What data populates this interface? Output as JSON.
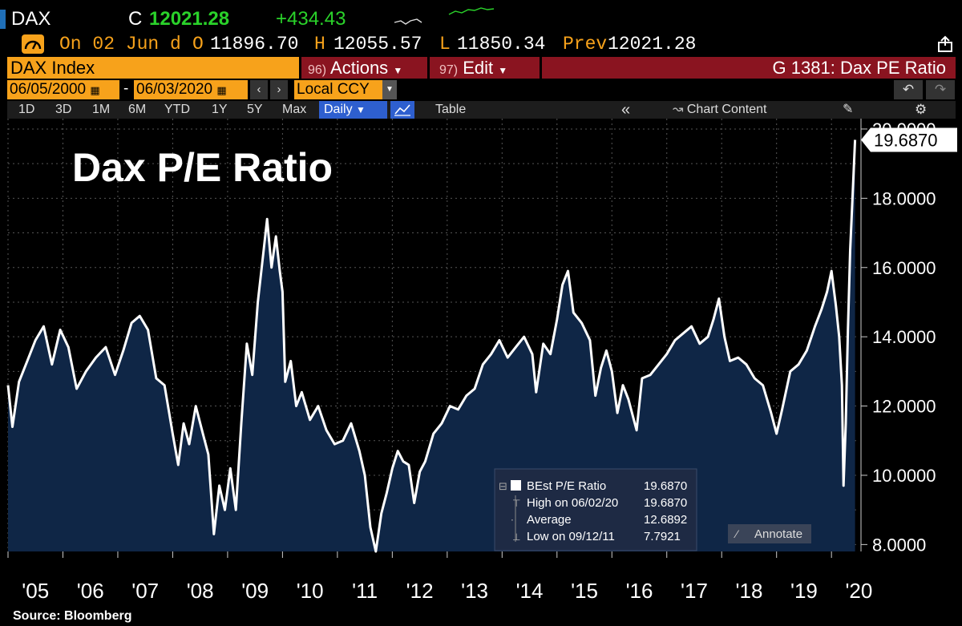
{
  "header": {
    "ticker": "DAX",
    "price_flag": "C",
    "price": "12021.28",
    "change": "+434.43",
    "date_label": "On 02 Jun d",
    "open_label": "O",
    "open": "11896.70",
    "high_label": "H",
    "high": "12055.57",
    "low_label": "L",
    "low": "11850.34",
    "prev_label": "Prev",
    "prev": "12021.28"
  },
  "toolbar": {
    "security": "DAX Index",
    "actions_num": "96)",
    "actions_label": "Actions",
    "edit_num": "97)",
    "edit_label": "Edit",
    "function_title": "G 1381: Dax PE Ratio",
    "start_date": "06/05/2000",
    "end_date": "06/03/2020",
    "currency": "Local CCY",
    "ranges": [
      "1D",
      "3D",
      "1M",
      "6M",
      "YTD",
      "1Y",
      "5Y",
      "Max"
    ],
    "period": "Daily",
    "table_label": "Table",
    "chart_content_label": "Chart Content",
    "colors": {
      "orange": "#f7a21b",
      "darkred": "#8a1420",
      "blue": "#2e5fcf"
    }
  },
  "chart_data": {
    "type": "area",
    "title": "Dax P/E Ratio",
    "x_tick_labels": [
      "'05",
      "'06",
      "'07",
      "'08",
      "'09",
      "'10",
      "'11",
      "'12",
      "'13",
      "'14",
      "'15",
      "'16",
      "'17",
      "'18",
      "'19",
      "'20"
    ],
    "y_tick_labels": [
      "8.0000",
      "10.0000",
      "12.0000",
      "14.0000",
      "16.0000",
      "18.0000",
      "20.0000"
    ],
    "ylim": [
      7.8,
      20.3
    ],
    "xlim": [
      2005.0,
      2020.45
    ],
    "grid": true,
    "series": [
      {
        "name": "BEst P/E Ratio",
        "color": "#ffffff",
        "fill": "#0f2646",
        "points": [
          [
            2005.0,
            12.6
          ],
          [
            2005.08,
            11.4
          ],
          [
            2005.2,
            12.7
          ],
          [
            2005.35,
            13.3
          ],
          [
            2005.5,
            13.9
          ],
          [
            2005.65,
            14.3
          ],
          [
            2005.8,
            13.2
          ],
          [
            2005.95,
            14.2
          ],
          [
            2006.1,
            13.7
          ],
          [
            2006.25,
            12.5
          ],
          [
            2006.42,
            13.0
          ],
          [
            2006.6,
            13.4
          ],
          [
            2006.78,
            13.7
          ],
          [
            2006.95,
            12.9
          ],
          [
            2007.1,
            13.6
          ],
          [
            2007.25,
            14.4
          ],
          [
            2007.4,
            14.6
          ],
          [
            2007.55,
            14.2
          ],
          [
            2007.7,
            12.8
          ],
          [
            2007.85,
            12.6
          ],
          [
            2008.0,
            11.2
          ],
          [
            2008.1,
            10.3
          ],
          [
            2008.2,
            11.5
          ],
          [
            2008.3,
            10.9
          ],
          [
            2008.42,
            12.0
          ],
          [
            2008.55,
            11.2
          ],
          [
            2008.65,
            10.6
          ],
          [
            2008.75,
            8.3
          ],
          [
            2008.85,
            9.7
          ],
          [
            2008.95,
            9.0
          ],
          [
            2009.05,
            10.2
          ],
          [
            2009.15,
            9.0
          ],
          [
            2009.25,
            11.5
          ],
          [
            2009.35,
            13.8
          ],
          [
            2009.45,
            12.9
          ],
          [
            2009.55,
            15.0
          ],
          [
            2009.65,
            16.4
          ],
          [
            2009.72,
            17.4
          ],
          [
            2009.8,
            16.0
          ],
          [
            2009.88,
            16.9
          ],
          [
            2009.95,
            15.9
          ],
          [
            2010.0,
            15.3
          ],
          [
            2010.05,
            12.7
          ],
          [
            2010.15,
            13.3
          ],
          [
            2010.25,
            12.0
          ],
          [
            2010.35,
            12.4
          ],
          [
            2010.5,
            11.6
          ],
          [
            2010.65,
            12.0
          ],
          [
            2010.8,
            11.3
          ],
          [
            2010.95,
            10.9
          ],
          [
            2011.1,
            11.0
          ],
          [
            2011.25,
            11.5
          ],
          [
            2011.4,
            10.7
          ],
          [
            2011.5,
            10.0
          ],
          [
            2011.6,
            8.5
          ],
          [
            2011.7,
            7.8
          ],
          [
            2011.8,
            8.9
          ],
          [
            2011.9,
            9.5
          ],
          [
            2012.0,
            10.2
          ],
          [
            2012.1,
            10.7
          ],
          [
            2012.2,
            10.4
          ],
          [
            2012.3,
            10.3
          ],
          [
            2012.4,
            9.2
          ],
          [
            2012.5,
            10.1
          ],
          [
            2012.6,
            10.4
          ],
          [
            2012.75,
            11.2
          ],
          [
            2012.9,
            11.5
          ],
          [
            2013.05,
            12.0
          ],
          [
            2013.2,
            11.9
          ],
          [
            2013.35,
            12.3
          ],
          [
            2013.5,
            12.5
          ],
          [
            2013.65,
            13.2
          ],
          [
            2013.8,
            13.5
          ],
          [
            2013.95,
            13.9
          ],
          [
            2014.1,
            13.4
          ],
          [
            2014.25,
            13.7
          ],
          [
            2014.4,
            14.0
          ],
          [
            2014.55,
            13.5
          ],
          [
            2014.62,
            12.4
          ],
          [
            2014.75,
            13.8
          ],
          [
            2014.88,
            13.5
          ],
          [
            2015.0,
            14.5
          ],
          [
            2015.1,
            15.5
          ],
          [
            2015.2,
            15.9
          ],
          [
            2015.3,
            14.7
          ],
          [
            2015.45,
            14.4
          ],
          [
            2015.6,
            13.9
          ],
          [
            2015.7,
            12.3
          ],
          [
            2015.8,
            13.1
          ],
          [
            2015.9,
            13.6
          ],
          [
            2016.0,
            13.0
          ],
          [
            2016.1,
            11.8
          ],
          [
            2016.2,
            12.6
          ],
          [
            2016.3,
            12.2
          ],
          [
            2016.45,
            11.3
          ],
          [
            2016.55,
            12.8
          ],
          [
            2016.7,
            12.9
          ],
          [
            2016.85,
            13.2
          ],
          [
            2017.0,
            13.5
          ],
          [
            2017.15,
            13.9
          ],
          [
            2017.3,
            14.1
          ],
          [
            2017.45,
            14.3
          ],
          [
            2017.6,
            13.8
          ],
          [
            2017.75,
            14.0
          ],
          [
            2017.85,
            14.5
          ],
          [
            2017.95,
            15.1
          ],
          [
            2018.05,
            14.0
          ],
          [
            2018.15,
            13.3
          ],
          [
            2018.3,
            13.4
          ],
          [
            2018.45,
            13.2
          ],
          [
            2018.6,
            12.8
          ],
          [
            2018.75,
            12.6
          ],
          [
            2018.9,
            11.8
          ],
          [
            2019.0,
            11.2
          ],
          [
            2019.1,
            11.9
          ],
          [
            2019.25,
            13.0
          ],
          [
            2019.4,
            13.2
          ],
          [
            2019.55,
            13.6
          ],
          [
            2019.7,
            14.3
          ],
          [
            2019.82,
            14.8
          ],
          [
            2019.92,
            15.3
          ],
          [
            2020.0,
            15.9
          ],
          [
            2020.08,
            14.9
          ],
          [
            2020.14,
            14.0
          ],
          [
            2020.19,
            12.6
          ],
          [
            2020.22,
            9.7
          ],
          [
            2020.26,
            11.5
          ],
          [
            2020.3,
            14.2
          ],
          [
            2020.34,
            16.5
          ],
          [
            2020.38,
            17.9
          ],
          [
            2020.41,
            19.0
          ],
          [
            2020.43,
            19.687
          ]
        ]
      }
    ],
    "last_value_label": "19.6870",
    "legend": {
      "name": "BEst P/E Ratio",
      "value": "19.6870",
      "high_label": "High on 06/02/20",
      "high_value": "19.6870",
      "average_label": "Average",
      "average_value": "12.6892",
      "low_label": "Low on 09/12/11",
      "low_value": "7.7921",
      "annotate_label": "Annotate"
    }
  },
  "source_note": "Source: Bloomberg"
}
